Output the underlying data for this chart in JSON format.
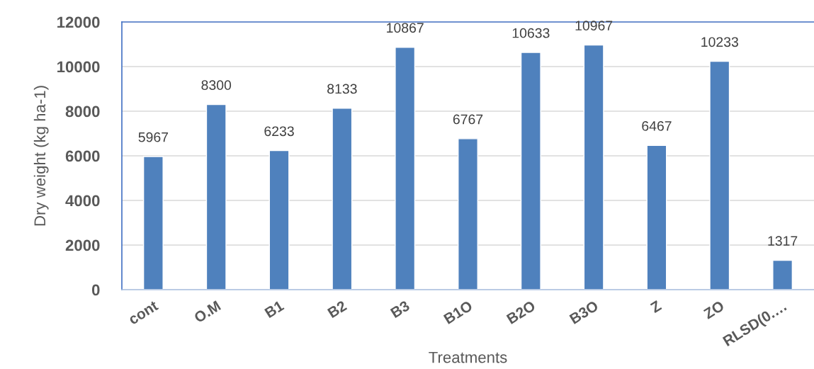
{
  "chart_data": {
    "type": "bar",
    "categories": [
      "cont",
      "O.M",
      "B1",
      "B2",
      "B3",
      "B1O",
      "B2O",
      "B3O",
      "Z",
      "ZO",
      "RLSD(0.…"
    ],
    "values": [
      5967,
      8300,
      6233,
      8133,
      10867,
      6767,
      10633,
      10967,
      6467,
      10233,
      1317
    ],
    "color": "#4f81bd",
    "ylim": [
      0,
      12000
    ],
    "yticks": [
      0,
      2000,
      4000,
      6000,
      8000,
      10000,
      12000
    ],
    "grid": "y",
    "data_labels": true,
    "xlabel": "Treatments",
    "ylabel": "Dry weight (kg ha-1)"
  }
}
